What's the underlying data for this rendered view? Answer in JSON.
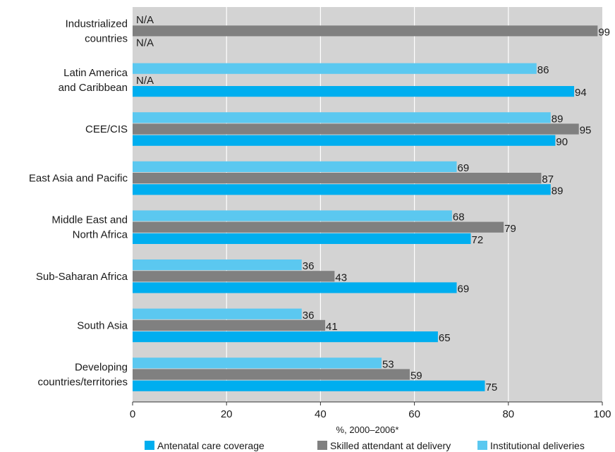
{
  "chart_data": {
    "type": "bar",
    "orientation": "horizontal",
    "categories": [
      [
        "Industrialized",
        "countries"
      ],
      [
        "Latin America",
        "and Caribbean"
      ],
      [
        "CEE/CIS"
      ],
      [
        "East Asia and Pacific"
      ],
      [
        "Middle East and",
        "North Africa"
      ],
      [
        "Sub-Saharan Africa"
      ],
      [
        "South Asia"
      ],
      [
        "Developing",
        "countries/territories"
      ]
    ],
    "series": [
      {
        "name": "Institutional deliveries",
        "color": "#5bc8f0",
        "values": [
          null,
          86,
          89,
          69,
          68,
          36,
          36,
          53
        ]
      },
      {
        "name": "Skilled attendant at delivery",
        "color": "#808080",
        "values": [
          99,
          null,
          95,
          87,
          79,
          43,
          41,
          59
        ]
      },
      {
        "name": "Antenatal care coverage",
        "color": "#00aeef",
        "values": [
          null,
          94,
          90,
          89,
          72,
          69,
          65,
          75
        ]
      }
    ],
    "missing_label": "N/A",
    "legend_order": [
      "Antenatal care coverage",
      "Skilled attendant at delivery",
      "Institutional deliveries"
    ],
    "xlabel": "%, 2000–2006*",
    "xlim": [
      0,
      100
    ],
    "xticks": [
      0,
      20,
      40,
      60,
      80,
      100
    ],
    "grid": true,
    "plot_background": "#d3d3d3",
    "legend_position": "bottom"
  }
}
